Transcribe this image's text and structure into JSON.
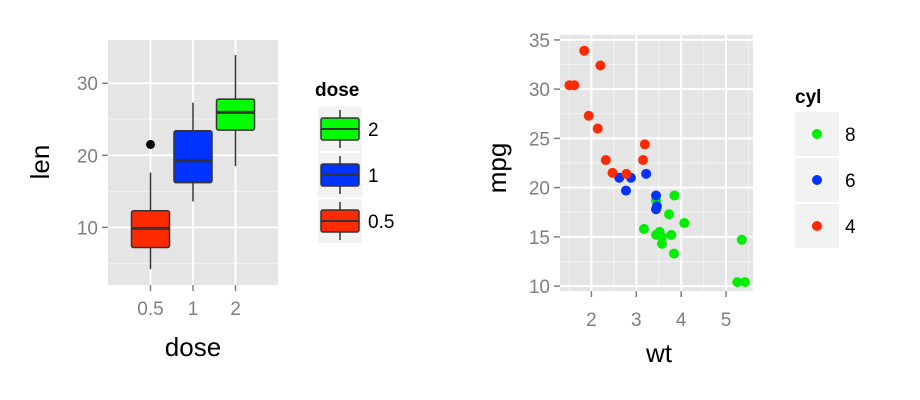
{
  "chart_data": [
    {
      "type": "boxplot",
      "x_var": "dose",
      "y_var": "len",
      "xlabel": "dose",
      "ylabel": "len",
      "categories": [
        "0.5",
        "1",
        "2"
      ],
      "ylim": [
        2,
        36
      ],
      "yticks": [
        10,
        20,
        30
      ],
      "grid": true,
      "legend": {
        "title": "dose",
        "position": "right",
        "entries": [
          "2",
          "1",
          "0.5"
        ]
      },
      "boxes": [
        {
          "category": "0.5",
          "min": 4.2,
          "q1": 7.2,
          "median": 9.85,
          "q3": 12.3,
          "max": 17.6,
          "outliers": [
            21.5
          ],
          "color": "#ff2a00"
        },
        {
          "category": "1",
          "min": 13.6,
          "q1": 16.2,
          "median": 19.25,
          "q3": 23.4,
          "max": 27.3,
          "outliers": [],
          "color": "#0033ff"
        },
        {
          "category": "2",
          "min": 18.5,
          "q1": 23.5,
          "median": 25.95,
          "q3": 27.8,
          "max": 33.9,
          "outliers": [],
          "color": "#00ff00"
        }
      ]
    },
    {
      "type": "scatter",
      "x_var": "wt",
      "y_var": "mpg",
      "xlabel": "wt",
      "ylabel": "mpg",
      "xlim": [
        1.3,
        5.6
      ],
      "ylim": [
        9.5,
        35.5
      ],
      "xticks": [
        2,
        3,
        4,
        5
      ],
      "yticks": [
        10,
        15,
        20,
        25,
        30,
        35
      ],
      "grid": true,
      "legend": {
        "title": "cyl",
        "position": "right",
        "entries": [
          "8",
          "6",
          "4"
        ]
      },
      "series": [
        {
          "name": "8",
          "color": "#00ee00",
          "points": [
            [
              3.44,
              18.7
            ],
            [
              3.57,
              14.3
            ],
            [
              4.07,
              16.4
            ],
            [
              3.73,
              17.3
            ],
            [
              3.78,
              15.2
            ],
            [
              5.25,
              10.4
            ],
            [
              5.42,
              10.4
            ],
            [
              5.35,
              14.7
            ],
            [
              3.52,
              15.5
            ],
            [
              3.44,
              15.2
            ],
            [
              3.84,
              13.3
            ],
            [
              3.85,
              19.2
            ],
            [
              3.17,
              15.8
            ],
            [
              3.57,
              15.0
            ]
          ]
        },
        {
          "name": "6",
          "color": "#0033ff",
          "points": [
            [
              2.62,
              21.0
            ],
            [
              2.88,
              21.0
            ],
            [
              3.22,
              21.4
            ],
            [
              3.46,
              18.1
            ],
            [
              3.44,
              19.2
            ],
            [
              3.44,
              17.8
            ],
            [
              2.77,
              19.7
            ]
          ]
        },
        {
          "name": "4",
          "color": "#ff2a00",
          "points": [
            [
              2.32,
              22.8
            ],
            [
              3.19,
              24.4
            ],
            [
              3.15,
              22.8
            ],
            [
              2.2,
              32.4
            ],
            [
              1.62,
              30.4
            ],
            [
              1.84,
              33.9
            ],
            [
              2.47,
              21.5
            ],
            [
              1.94,
              27.3
            ],
            [
              2.14,
              26.0
            ],
            [
              1.51,
              30.4
            ],
            [
              2.78,
              21.4
            ]
          ]
        }
      ]
    }
  ]
}
